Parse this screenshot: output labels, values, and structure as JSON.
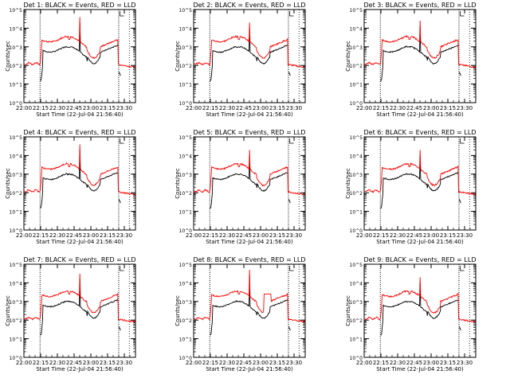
{
  "figure": {
    "xlabel": "Start Time (22-Jul-04 21:56:40)",
    "ylabel": "Counts/sec",
    "x_ticks": [
      "22:00",
      "22:15",
      "22:30",
      "22:45",
      "23:00",
      "23:15",
      "23:30"
    ],
    "y_ticks": [
      "10^0",
      "10^1",
      "10^2",
      "10^3",
      "10^4",
      "10^5"
    ],
    "colors": {
      "events": "#000000",
      "lld": "#ff0000",
      "axes": "#000000"
    }
  },
  "chart_data": [
    {
      "type": "line",
      "title": "Det 1: BLACK = Events, RED = LLD",
      "xlim_min": [
        3.33,
        103.33
      ],
      "ylim_log10": [
        0,
        5
      ],
      "series": [
        {
          "name": "BLACK = Events"
        },
        {
          "name": "RED = LLD"
        }
      ],
      "spike_log10": 4.6
    },
    {
      "type": "line",
      "title": "Det 2: BLACK = Events, RED = LLD",
      "xlim_min": [
        3.33,
        103.33
      ],
      "ylim_log10": [
        0,
        5
      ],
      "series": [
        {
          "name": "BLACK = Events"
        },
        {
          "name": "RED = LLD"
        }
      ],
      "spike_log10": 4.3
    },
    {
      "type": "line",
      "title": "Det 3: BLACK = Events, RED = LLD",
      "xlim_min": [
        3.33,
        103.33
      ],
      "ylim_log10": [
        0,
        5
      ],
      "series": [
        {
          "name": "BLACK = Events"
        },
        {
          "name": "RED = LLD"
        }
      ],
      "spike_log10": 4.4
    },
    {
      "type": "line",
      "title": "Det 4: BLACK = Events, RED = LLD",
      "xlim_min": [
        3.33,
        103.33
      ],
      "ylim_log10": [
        0,
        5
      ],
      "series": [
        {
          "name": "BLACK = Events"
        },
        {
          "name": "RED = LLD"
        }
      ],
      "spike_log10": 4.6
    },
    {
      "type": "line",
      "title": "Det 5: BLACK = Events, RED = LLD",
      "xlim_min": [
        3.33,
        103.33
      ],
      "ylim_log10": [
        0,
        5
      ],
      "series": [
        {
          "name": "BLACK = Events"
        },
        {
          "name": "RED = LLD"
        }
      ],
      "spike_log10": 4.3
    },
    {
      "type": "line",
      "title": "Det 6: BLACK = Events, RED = LLD",
      "xlim_min": [
        3.33,
        103.33
      ],
      "ylim_log10": [
        0,
        5
      ],
      "series": [
        {
          "name": "BLACK = Events"
        },
        {
          "name": "RED = LLD"
        }
      ],
      "spike_log10": 4.3
    },
    {
      "type": "line",
      "title": "Det 7: BLACK = Events, RED = LLD",
      "xlim_min": [
        3.33,
        103.33
      ],
      "ylim_log10": [
        0,
        5
      ],
      "series": [
        {
          "name": "BLACK = Events"
        },
        {
          "name": "RED = LLD"
        }
      ],
      "spike_log10": 4.5
    },
    {
      "type": "line",
      "title": "Det 8: BLACK = Events, RED = LLD",
      "xlim_min": [
        3.33,
        103.33
      ],
      "ylim_log10": [
        0,
        5
      ],
      "series": [
        {
          "name": "BLACK = Events"
        },
        {
          "name": "RED = LLD"
        }
      ],
      "spike_log10": 4.7,
      "plateau_log10": 3.4
    },
    {
      "type": "line",
      "title": "Det 9: BLACK = Events, RED = LLD",
      "xlim_min": [
        3.33,
        103.33
      ],
      "ylim_log10": [
        0,
        5
      ],
      "series": [
        {
          "name": "BLACK = Events"
        },
        {
          "name": "RED = LLD"
        }
      ],
      "spike_log10": 4.3
    }
  ]
}
